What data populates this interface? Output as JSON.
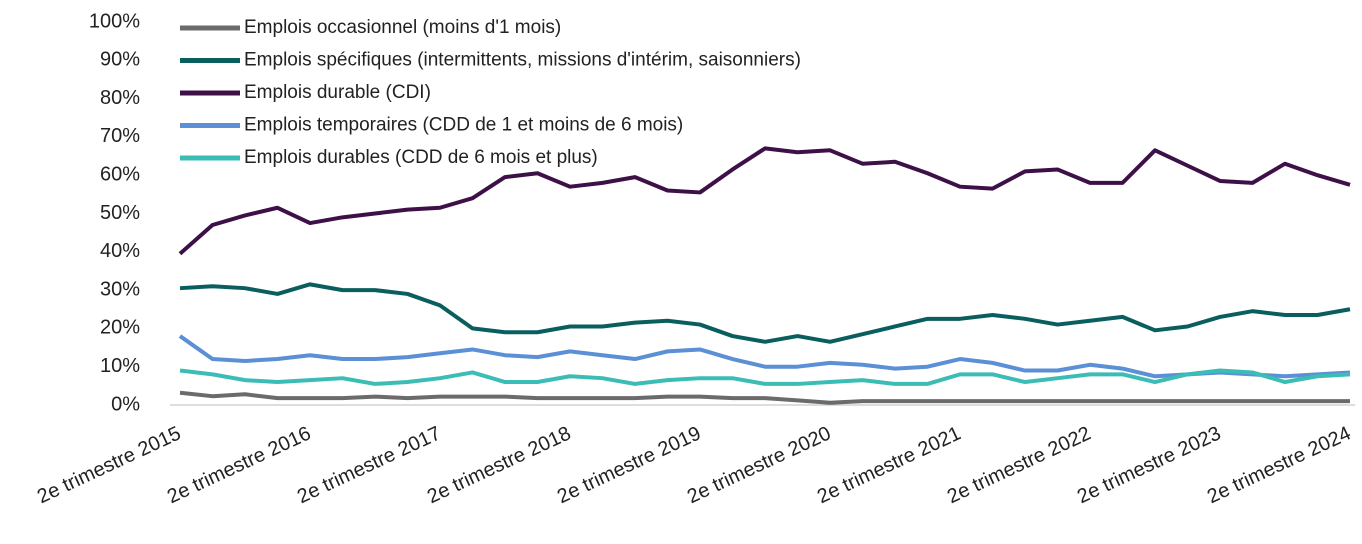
{
  "chart_data": {
    "type": "line",
    "categories": [
      "2e trimestre 2015",
      null,
      null,
      null,
      "2e trimestre 2016",
      null,
      null,
      null,
      "2e trimestre 2017",
      null,
      null,
      null,
      "2e trimestre 2018",
      null,
      null,
      null,
      "2e trimestre 2019",
      null,
      null,
      null,
      "2e trimestre 2020",
      null,
      null,
      null,
      "2e trimestre 2021",
      null,
      null,
      null,
      "2e trimestre 2022",
      null,
      null,
      null,
      "2e trimestre 2023",
      null,
      null,
      null,
      "2e trimestre 2024"
    ],
    "series": [
      {
        "name": "Emplois occasionnel (moins d'1 mois)",
        "color": "#6b6b6b",
        "values": [
          3.2,
          2.3,
          2.8,
          1.8,
          1.8,
          1.8,
          2.2,
          1.8,
          2.2,
          2.2,
          2.2,
          1.8,
          1.8,
          1.8,
          1.8,
          2.2,
          2.2,
          1.8,
          1.8,
          1.2,
          0.6,
          1,
          1,
          1,
          1,
          1,
          1,
          1,
          1,
          1,
          1,
          1,
          1,
          1,
          1,
          1,
          1
        ]
      },
      {
        "name": "Emplois spécifiques (intermittents, missions d'intérim, saisonniers)",
        "color": "#0a5e5e",
        "values": [
          30.5,
          31,
          30.5,
          29,
          31.5,
          30,
          30,
          29,
          26,
          20,
          19,
          19,
          20.5,
          20.5,
          21.5,
          22,
          21,
          18,
          16.5,
          18,
          16.5,
          18.5,
          20.5,
          22.5,
          22.5,
          23.5,
          22.5,
          21,
          22,
          23,
          19.5,
          20.5,
          23,
          24.5,
          23.5,
          23.5,
          25
        ]
      },
      {
        "name": "Emplois durable (CDI)",
        "color": "#3d1048",
        "values": [
          39.5,
          47,
          49.5,
          51.5,
          47.5,
          49,
          50,
          51,
          51.5,
          54,
          59.5,
          60.5,
          57,
          58,
          59.5,
          56,
          55.5,
          61.5,
          67,
          66,
          66.5,
          63,
          63.5,
          60.5,
          57,
          56.5,
          61,
          61.5,
          58,
          58,
          66.5,
          62.5,
          58.5,
          58,
          63,
          60,
          57.5
        ]
      },
      {
        "name": "Emplois temporaires (CDD de 1 et moins de 6 mois)",
        "color": "#5b8fd6",
        "values": [
          18,
          12,
          11.5,
          12,
          13,
          12,
          12,
          12.5,
          13.5,
          14.5,
          13,
          12.5,
          14,
          13,
          12,
          14,
          14.5,
          12,
          10,
          10,
          11,
          10.5,
          9.5,
          10,
          12,
          11,
          9,
          9,
          10.5,
          9.5,
          7.5,
          8,
          8.5,
          8,
          7.5,
          8,
          8.5
        ]
      },
      {
        "name": "Emplois durables (CDD de 6 mois et plus)",
        "color": "#3bbdb5",
        "values": [
          9,
          8,
          6.5,
          6,
          6.5,
          7,
          5.5,
          6,
          7,
          8.5,
          6,
          6,
          7.5,
          7,
          5.5,
          6.5,
          7,
          7,
          5.5,
          5.5,
          6,
          6.5,
          5.5,
          5.5,
          8,
          8,
          6,
          7,
          8,
          8,
          6,
          8,
          9,
          8.5,
          6,
          7.5,
          8
        ]
      }
    ],
    "ylim": [
      0,
      100
    ],
    "yticks": [
      {
        "value": 0,
        "label": "0%"
      },
      {
        "value": 10,
        "label": "10%"
      },
      {
        "value": 20,
        "label": "20%"
      },
      {
        "value": 30,
        "label": "30%"
      },
      {
        "value": 40,
        "label": "40%"
      },
      {
        "value": 50,
        "label": "50%"
      },
      {
        "value": 60,
        "label": "60%"
      },
      {
        "value": 70,
        "label": "70%"
      },
      {
        "value": 80,
        "label": "80%"
      },
      {
        "value": 90,
        "label": "90%"
      },
      {
        "value": 100,
        "label": "100%"
      }
    ],
    "grid": false,
    "legend": "top-left"
  }
}
